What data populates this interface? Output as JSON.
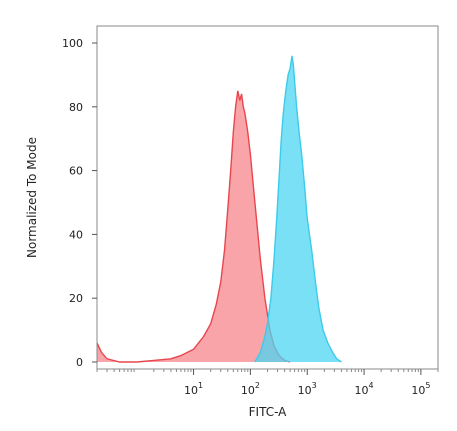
{
  "chart_data": {
    "type": "area",
    "title": "",
    "xlabel": "FITC-A",
    "ylabel": "Normalized To Mode",
    "x_scale": "log",
    "xlim": [
      0.2,
      200000
    ],
    "ylim": [
      0,
      100
    ],
    "y_ticks": [
      0,
      20,
      40,
      60,
      80,
      100
    ],
    "x_ticks": [
      {
        "value": 10,
        "base": "10",
        "exp": "1"
      },
      {
        "value": 100,
        "base": "10",
        "exp": "2"
      },
      {
        "value": 1000,
        "base": "10",
        "exp": "3"
      },
      {
        "value": 10000,
        "base": "10",
        "exp": "4"
      },
      {
        "value": 100000,
        "base": "10",
        "exp": "5"
      }
    ],
    "grid": false,
    "legend": "none",
    "series": [
      {
        "color": "#e8464e",
        "fill": "#f5868b",
        "points": [
          [
            0.2,
            6
          ],
          [
            0.24,
            3
          ],
          [
            0.3,
            1
          ],
          [
            0.5,
            0
          ],
          [
            1,
            0
          ],
          [
            2,
            0.5
          ],
          [
            4,
            1
          ],
          [
            6,
            2
          ],
          [
            10,
            4
          ],
          [
            15,
            8
          ],
          [
            20,
            12
          ],
          [
            25,
            18
          ],
          [
            30,
            25
          ],
          [
            35,
            35
          ],
          [
            40,
            48
          ],
          [
            45,
            60
          ],
          [
            50,
            72
          ],
          [
            55,
            80
          ],
          [
            60,
            85
          ],
          [
            65,
            82
          ],
          [
            70,
            84
          ],
          [
            75,
            80
          ],
          [
            80,
            78
          ],
          [
            90,
            72
          ],
          [
            100,
            65
          ],
          [
            120,
            50
          ],
          [
            150,
            32
          ],
          [
            180,
            20
          ],
          [
            220,
            10
          ],
          [
            260,
            5
          ],
          [
            320,
            2
          ],
          [
            400,
            0.5
          ],
          [
            500,
            0
          ]
        ]
      },
      {
        "color": "#3ccbea",
        "fill": "#4ed6f2",
        "points": [
          [
            120,
            0
          ],
          [
            150,
            3
          ],
          [
            180,
            8
          ],
          [
            200,
            12
          ],
          [
            230,
            20
          ],
          [
            260,
            32
          ],
          [
            290,
            45
          ],
          [
            320,
            58
          ],
          [
            350,
            70
          ],
          [
            380,
            78
          ],
          [
            420,
            85
          ],
          [
            460,
            90
          ],
          [
            500,
            92
          ],
          [
            540,
            96
          ],
          [
            570,
            93
          ],
          [
            600,
            88
          ],
          [
            650,
            80
          ],
          [
            720,
            72
          ],
          [
            800,
            65
          ],
          [
            900,
            55
          ],
          [
            1000,
            45
          ],
          [
            1200,
            35
          ],
          [
            1400,
            25
          ],
          [
            1600,
            17
          ],
          [
            1900,
            10
          ],
          [
            2300,
            6
          ],
          [
            2800,
            3
          ],
          [
            3300,
            1
          ],
          [
            4000,
            0
          ]
        ]
      }
    ]
  }
}
